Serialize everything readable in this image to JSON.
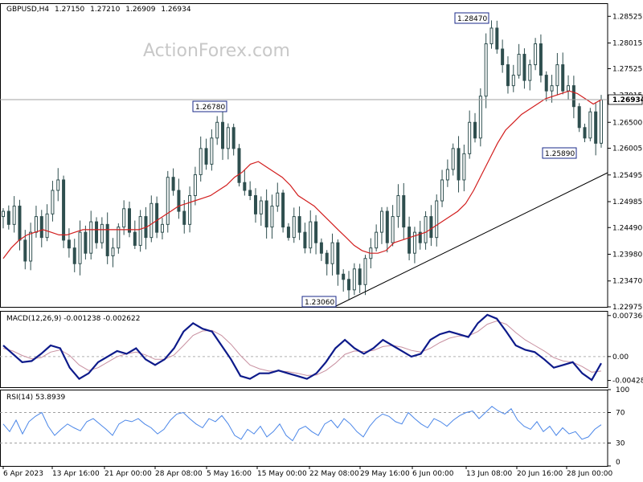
{
  "header": {
    "symbol": "GBPUSD,H4",
    "open": "1.27150",
    "high": "1.27210",
    "low": "1.26909",
    "close": "1.26934"
  },
  "watermark": "ActionForex.com",
  "colors": {
    "candle": "#2f4f4f",
    "ma": "#d21e1e",
    "macd": "#0d1a8a",
    "macd_signal": "#c890a0",
    "rsi": "#4a86e8",
    "trendline": "#000000",
    "price_line": "#a0a0a0"
  },
  "chart_data": [
    {
      "type": "line",
      "subtype": "candlestick",
      "title": "GBPUSD,H4",
      "ylim": [
        1.22975,
        1.28775
      ],
      "y_ticks": [
        "1.28525",
        "1.28015",
        "1.27525",
        "1.27015",
        "1.26500",
        "1.26005",
        "1.25495",
        "1.24985",
        "1.24490",
        "1.23980",
        "1.23470",
        "1.22975"
      ],
      "x_ticks": [
        "6 Apr 2023",
        "13 Apr 16:00",
        "21 Apr 00:00",
        "28 Apr 08:00",
        "5 May 16:00",
        "15 May 00:00",
        "22 May 08:00",
        "29 May 16:00",
        "6 Jun 00:00",
        "13 Jun 08:00",
        "20 Jun 16:00",
        "28 Jun 00:00"
      ],
      "current_price": "1.26934",
      "series": [
        {
          "values": [
            1.248,
            1.2455,
            1.249,
            1.2425,
            1.2385,
            1.244,
            1.247,
            1.243,
            1.2475,
            1.252,
            1.254,
            1.2425,
            1.241,
            1.238,
            1.244,
            1.24,
            1.246,
            1.242,
            1.2455,
            1.2395,
            1.241,
            1.245,
            1.2485,
            1.244,
            1.2415,
            1.247,
            1.243,
            1.2495,
            1.244,
            1.2455,
            1.2545,
            1.252,
            1.248,
            1.2455,
            1.251,
            1.255,
            1.26,
            1.257,
            1.262,
            1.265,
            1.26,
            1.264,
            1.26,
            1.2535,
            1.252,
            1.251,
            1.2475,
            1.25,
            1.245,
            1.249,
            1.2515,
            1.245,
            1.243,
            1.247,
            1.244,
            1.241,
            1.246,
            1.242,
            1.24,
            1.238,
            1.242,
            1.236,
            1.235,
            1.233,
            1.237,
            1.234,
            1.239,
            1.241,
            1.244,
            1.248,
            1.242,
            1.247,
            1.251,
            1.245,
            1.24,
            1.244,
            1.242,
            1.247,
            1.243,
            1.25,
            1.254,
            1.256,
            1.26,
            1.254,
            1.259,
            1.265,
            1.262,
            1.27,
            1.28,
            1.283,
            1.279,
            1.276,
            1.272,
            1.274,
            1.278,
            1.273,
            1.276,
            1.28,
            1.274,
            1.271,
            1.272,
            1.276,
            1.271,
            1.272,
            1.268,
            1.264,
            1.262,
            1.267,
            1.261,
            1.2693
          ],
          "name": ""
        },
        {
          "values": [
            1.239,
            1.241,
            1.2425,
            1.2435,
            1.244,
            1.2445,
            1.244,
            1.2435,
            1.2435,
            1.244,
            1.2445,
            1.2445,
            1.2445,
            1.2445,
            1.2445,
            1.2445,
            1.2445,
            1.2445,
            1.245,
            1.246,
            1.247,
            1.248,
            1.249,
            1.2495,
            1.25,
            1.2505,
            1.251,
            1.252,
            1.253,
            1.2545,
            1.2555,
            1.257,
            1.2575,
            1.2565,
            1.2555,
            1.2545,
            1.253,
            1.251,
            1.25,
            1.249,
            1.2475,
            1.246,
            1.2445,
            1.243,
            1.2415,
            1.2405,
            1.24,
            1.24,
            1.2405,
            1.242,
            1.2425,
            1.243,
            1.2435,
            1.244,
            1.245,
            1.246,
            1.247,
            1.248,
            1.2495,
            1.252,
            1.255,
            1.258,
            1.261,
            1.2635,
            1.265,
            1.2665,
            1.2675,
            1.2685,
            1.2695,
            1.27,
            1.2705,
            1.271,
            1.2705,
            1.2695,
            1.2685,
            1.2693
          ],
          "name": ""
        }
      ],
      "annotations": [
        "1.28470",
        "1.26780",
        "1.25890",
        "1.23060"
      ]
    },
    {
      "type": "line",
      "title": "MACD(12,26,9) -0.001238 -0.002622",
      "ylim": [
        -0.0055,
        0.0082
      ],
      "y_ticks": [
        "0.007366",
        "0.00",
        "-0.004286"
      ],
      "series": [
        {
          "name": "",
          "values": [
            0.002,
            0.0005,
            -0.001,
            -0.0008,
            0.0005,
            0.002,
            0.0015,
            -0.002,
            -0.004,
            -0.003,
            -0.001,
            0.0,
            0.001,
            0.0005,
            0.0015,
            -0.0005,
            -0.0015,
            -0.0005,
            0.0015,
            0.0045,
            0.006,
            0.005,
            0.0045,
            0.002,
            -0.0005,
            -0.0035,
            -0.004,
            -0.003,
            -0.003,
            -0.0025,
            -0.003,
            -0.0035,
            -0.004,
            -0.003,
            -0.001,
            0.0015,
            0.003,
            0.0015,
            0.0005,
            0.0015,
            0.003,
            0.002,
            0.001,
            0.0,
            0.0005,
            0.003,
            0.004,
            0.0045,
            0.004,
            0.0035,
            0.006,
            0.0075,
            0.0068,
            0.0045,
            0.002,
            0.0012,
            0.0008,
            -0.0005,
            -0.002,
            -0.0015,
            -0.001,
            -0.003,
            -0.0042,
            -0.0012
          ]
        },
        {
          "name": "",
          "values": [
            0.0015,
            0.001,
            0.0002,
            -0.0004,
            -0.0002,
            0.0008,
            0.0012,
            0.0002,
            -0.0015,
            -0.0025,
            -0.002,
            -0.001,
            0.0,
            0.0005,
            0.0008,
            0.0003,
            -0.0005,
            -0.0005,
            0.0003,
            0.002,
            0.0038,
            0.0046,
            0.0047,
            0.0038,
            0.0022,
            0.0002,
            -0.0015,
            -0.0022,
            -0.0026,
            -0.0026,
            -0.0027,
            -0.003,
            -0.0034,
            -0.0033,
            -0.0025,
            -0.0012,
            0.0004,
            0.001,
            0.0009,
            0.0011,
            0.0018,
            0.002,
            0.0017,
            0.0011,
            0.0008,
            0.0015,
            0.0025,
            0.0033,
            0.0037,
            0.0037,
            0.0045,
            0.0058,
            0.0064,
            0.0058,
            0.0043,
            0.003,
            0.002,
            0.001,
            -0.0002,
            -0.0008,
            -0.001,
            -0.0018,
            -0.0028,
            -0.0026
          ]
        }
      ]
    },
    {
      "type": "line",
      "title": "RSI(14) 53.8939",
      "ylim": [
        0,
        100
      ],
      "y_ticks": [
        "100",
        "70",
        "30",
        "0"
      ],
      "reference_lines": [
        70,
        30
      ],
      "series": [
        {
          "name": "",
          "values": [
            55,
            45,
            60,
            42,
            58,
            65,
            70,
            52,
            40,
            48,
            55,
            50,
            46,
            58,
            62,
            55,
            48,
            40,
            55,
            60,
            58,
            62,
            55,
            50,
            42,
            48,
            60,
            68,
            70,
            62,
            55,
            50,
            62,
            58,
            66,
            55,
            40,
            35,
            48,
            42,
            52,
            38,
            45,
            55,
            40,
            33,
            48,
            52,
            45,
            40,
            55,
            60,
            50,
            62,
            55,
            45,
            38,
            52,
            62,
            68,
            65,
            58,
            55,
            70,
            62,
            55,
            50,
            62,
            58,
            52,
            60,
            66,
            70,
            72,
            62,
            70,
            78,
            72,
            68,
            75,
            60,
            52,
            48,
            58,
            45,
            52,
            40,
            50,
            42,
            45,
            35,
            38,
            48,
            54
          ]
        }
      ]
    }
  ]
}
